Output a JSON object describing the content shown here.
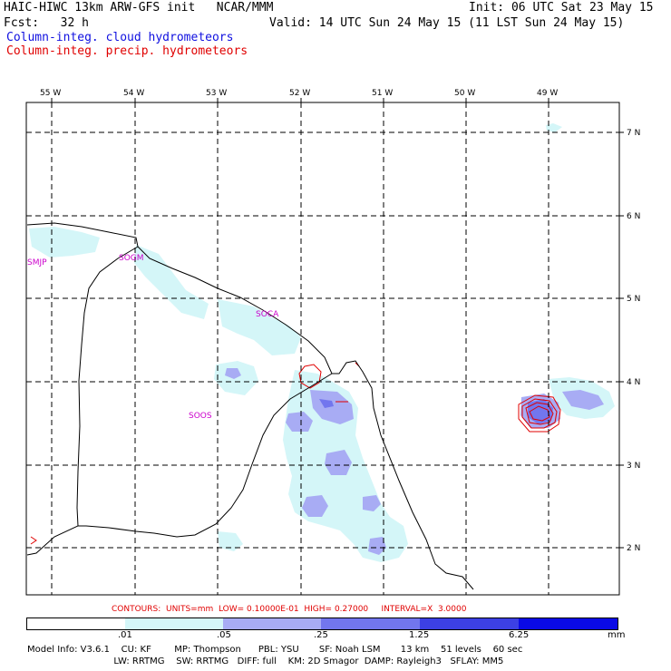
{
  "header": {
    "model_title": "HAIC-HIWC 13km ARW-GFS init   NCAR/MMM",
    "init_text": "Init: 06 UTC Sat 23 May 15",
    "fcst_text": "Fcst:   32 h",
    "valid_text": "Valid: 14 UTC Sun 24 May 15 (11 LST Sun 24 May 15)",
    "legend_cloud": "Column-integ. cloud hydrometeors",
    "legend_precip": "Column-integ. precip. hydrometeors"
  },
  "map": {
    "lon_labels": [
      "55 W",
      "54 W",
      "53 W",
      "52 W",
      "51 W",
      "50 W",
      "49 W"
    ],
    "lat_labels": [
      "7 N",
      "6 N",
      "5 N",
      "4 N",
      "3 N",
      "2 N"
    ],
    "station_labels": [
      "SMJP",
      "SOGM",
      "SOCA",
      "SOOS"
    ],
    "colors": {
      "fill_1": "#d4f6f8",
      "fill_2": "#a8acf4",
      "fill_3": "#7276ee",
      "precip_contour": "#e00000",
      "station": "#cc00cc"
    }
  },
  "contours_info": "CONTOURS:  UNITS=mm  LOW= 0.10000E-01  HIGH= 0.27000     INTERVAL=X  3.0000",
  "colorbar": {
    "labels": [
      ".01",
      ".05",
      ".25",
      "1.25",
      "6.25"
    ],
    "unit": "mm",
    "colors": [
      "#ffffff",
      "#d4f6f8",
      "#a8acf4",
      "#7276ee",
      "#3c40e4",
      "#0a0ae6"
    ]
  },
  "model_info": {
    "line1": "Model Info: V3.6.1    CU: KF        MP: Thompson      PBL: YSU       SF: Noah LSM       13 km    51 levels    60 sec",
    "line2": "                              LW: RRTMG    SW: RRTMG   DIFF: full    KM: 2D Smagor  DAMP: Rayleigh3   SFLAY: MM5"
  }
}
